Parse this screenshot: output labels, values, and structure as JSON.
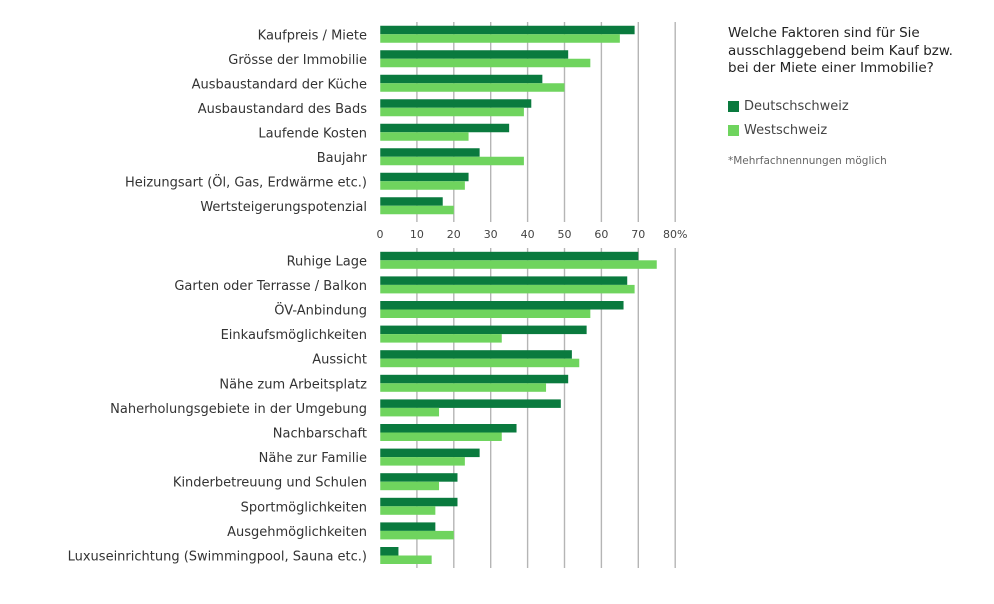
{
  "colors": {
    "deutschschweiz": "#0a7a3e",
    "westschweiz": "#6fd45e",
    "grid": "#b5b5b5",
    "axis_text": "#444444"
  },
  "legend": {
    "title_lines": [
      "Welche Faktoren sind für Sie",
      "ausschlaggebend beim Kauf bzw.",
      "bei der Miete einer Immobilie?"
    ],
    "series": [
      "Deutschschweiz",
      "Westschweiz"
    ],
    "note": "*Mehrfachnennungen möglich"
  },
  "chart_data": [
    {
      "type": "bar",
      "orientation": "horizontal",
      "categories": [
        "Kaufpreis / Miete",
        "Grösse der Immobilie",
        "Ausbaustandard der Küche",
        "Ausbaustandard des Bads",
        "Laufende Kosten",
        "Baujahr",
        "Heizungsart (Öl, Gas, Erdwärme etc.)",
        "Wertsteigerungspotenzial"
      ],
      "series": [
        {
          "name": "Deutschschweiz",
          "values": [
            69,
            51,
            44,
            41,
            35,
            27,
            24,
            17
          ]
        },
        {
          "name": "Westschweiz",
          "values": [
            65,
            57,
            50,
            39,
            24,
            39,
            23,
            20
          ]
        }
      ],
      "xlim": [
        0,
        80
      ],
      "xticks": [
        "0",
        "10",
        "20",
        "30",
        "40",
        "50",
        "60",
        "70",
        "80%"
      ],
      "grid": true
    },
    {
      "type": "bar",
      "orientation": "horizontal",
      "categories": [
        "Ruhige Lage",
        "Garten oder Terrasse / Balkon",
        "ÖV-Anbindung",
        "Einkaufsmöglichkeiten",
        "Aussicht",
        "Nähe zum Arbeitsplatz",
        "Naherholungsgebiete in der Umgebung",
        "Nachbarschaft",
        "Nähe zur Familie",
        "Kinderbetreuung und Schulen",
        "Sportmöglichkeiten",
        "Ausgehmöglichkeiten",
        "Luxuseinrichtung (Swimmingpool, Sauna etc.)"
      ],
      "series": [
        {
          "name": "Deutschschweiz",
          "values": [
            70,
            67,
            66,
            56,
            52,
            51,
            49,
            37,
            27,
            21,
            21,
            15,
            5
          ]
        },
        {
          "name": "Westschweiz",
          "values": [
            75,
            69,
            57,
            33,
            54,
            45,
            16,
            33,
            23,
            16,
            15,
            20,
            14
          ]
        }
      ],
      "xlim": [
        0,
        80
      ],
      "grid": true
    }
  ]
}
